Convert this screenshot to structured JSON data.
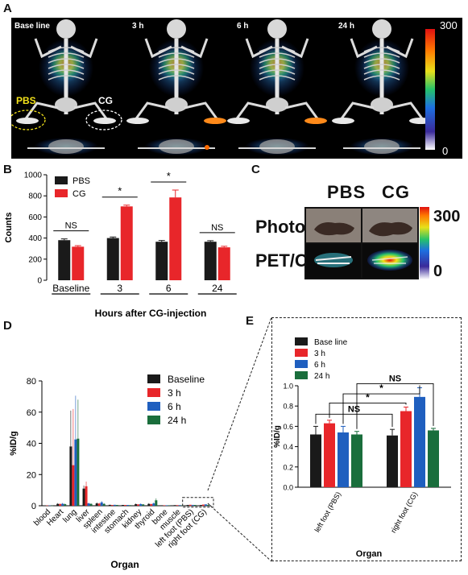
{
  "panel_a": {
    "letter": "A",
    "timepoints": [
      "Base line",
      "3 h",
      "6 h",
      "24 h"
    ],
    "colorbar_max": "300",
    "colorbar_min": "0",
    "foot_labels": [
      "PBS",
      "CG"
    ]
  },
  "panel_b": {
    "letter": "B",
    "chart_data": {
      "type": "bar",
      "categories": [
        "Baseline",
        "3",
        "6",
        "24"
      ],
      "series": [
        {
          "name": "PBS",
          "values": [
            380,
            400,
            365,
            365
          ],
          "errors": [
            12,
            10,
            12,
            10
          ],
          "color": "#1a1a1a"
        },
        {
          "name": "CG",
          "values": [
            318,
            700,
            785,
            312
          ],
          "errors": [
            10,
            12,
            70,
            10
          ],
          "color": "#e8262a"
        }
      ],
      "ylabel": "Counts",
      "xlabel": "Hours after CG-injection",
      "ylim": [
        0,
        1000
      ],
      "yticks": [
        0,
        200,
        400,
        600,
        800,
        1000
      ],
      "annotations": [
        "NS",
        "*",
        "*",
        "NS"
      ]
    }
  },
  "panel_c": {
    "letter": "C",
    "col_labels": [
      "PBS",
      "CG"
    ],
    "row_labels": [
      "Photo",
      "PET/CT"
    ],
    "colorbar_max": "300",
    "colorbar_min": "0"
  },
  "panel_d": {
    "letter": "D",
    "chart_data": {
      "type": "bar",
      "categories": [
        "blood",
        "Heart",
        "lung",
        "liver",
        "spleen",
        "intestine",
        "stomach",
        "kidney",
        "thyroid",
        "bone",
        "muscle",
        "left foot (PBS)",
        "right foot (CG)"
      ],
      "series": [
        {
          "name": "Baseline",
          "values": [
            0.2,
            1.2,
            38,
            11,
            1.5,
            0.6,
            0.5,
            1.0,
            1.2,
            0.3,
            0.4,
            0.52,
            0.51
          ],
          "errors": [
            0.1,
            0.5,
            23,
            2,
            0.6,
            0.2,
            0.2,
            0.4,
            0.5,
            0.1,
            0.1,
            0.08,
            0.06
          ],
          "color": "#1a1a1a"
        },
        {
          "name": "3 h",
          "values": [
            0.2,
            1.1,
            26,
            12.5,
            1.4,
            0.5,
            0.5,
            0.9,
            1.0,
            0.3,
            0.4,
            0.63,
            0.75
          ],
          "errors": [
            0.1,
            0.4,
            36,
            3,
            0.5,
            0.2,
            0.2,
            0.3,
            0.4,
            0.1,
            0.1,
            0.03,
            0.04
          ],
          "color": "#e8262a"
        },
        {
          "name": "6 h",
          "values": [
            0.2,
            1.3,
            42.5,
            1.5,
            2.2,
            0.6,
            0.5,
            1.1,
            1.5,
            0.3,
            0.4,
            0.54,
            0.89
          ],
          "errors": [
            0.1,
            0.5,
            28,
            0.5,
            0.8,
            0.2,
            0.2,
            0.4,
            0.6,
            0.1,
            0.1,
            0.06,
            0.09
          ],
          "color": "#1f5fbf"
        },
        {
          "name": "24 h",
          "values": [
            0.1,
            1.0,
            43,
            1.2,
            1.2,
            0.5,
            0.4,
            0.9,
            3.5,
            0.3,
            0.3,
            0.52,
            0.56
          ],
          "errors": [
            0.1,
            0.4,
            25,
            0.4,
            0.5,
            0.2,
            0.2,
            0.3,
            1.2,
            0.1,
            0.1,
            0.03,
            0.02
          ],
          "color": "#1a6e3c"
        }
      ],
      "ylabel": "%ID/g",
      "xlabel": "Organ",
      "ylim": [
        0,
        80
      ],
      "yticks": [
        0,
        20,
        40,
        60,
        80
      ]
    }
  },
  "panel_e": {
    "letter": "E",
    "chart_data": {
      "type": "bar",
      "categories": [
        "left foot (PBS)",
        "right foot (CG)"
      ],
      "series": [
        {
          "name": "Base line",
          "values": [
            0.52,
            0.51
          ],
          "errors": [
            0.08,
            0.06
          ],
          "color": "#1a1a1a"
        },
        {
          "name": "3 h",
          "values": [
            0.63,
            0.75
          ],
          "errors": [
            0.03,
            0.04
          ],
          "color": "#e8262a"
        },
        {
          "name": "6 h",
          "values": [
            0.54,
            0.89
          ],
          "errors": [
            0.06,
            0.09
          ],
          "color": "#1f5fbf"
        },
        {
          "name": "24 h",
          "values": [
            0.52,
            0.56
          ],
          "errors": [
            0.03,
            0.02
          ],
          "color": "#1a6e3c"
        }
      ],
      "ylabel": "%ID/g",
      "xlabel": "Organ",
      "ylim": [
        0,
        1.0
      ],
      "yticks": [
        "0.0",
        "0.2",
        "0.4",
        "0.6",
        "0.8",
        "1.0"
      ],
      "annotations": [
        "NS",
        "*",
        "*",
        "NS"
      ]
    }
  }
}
